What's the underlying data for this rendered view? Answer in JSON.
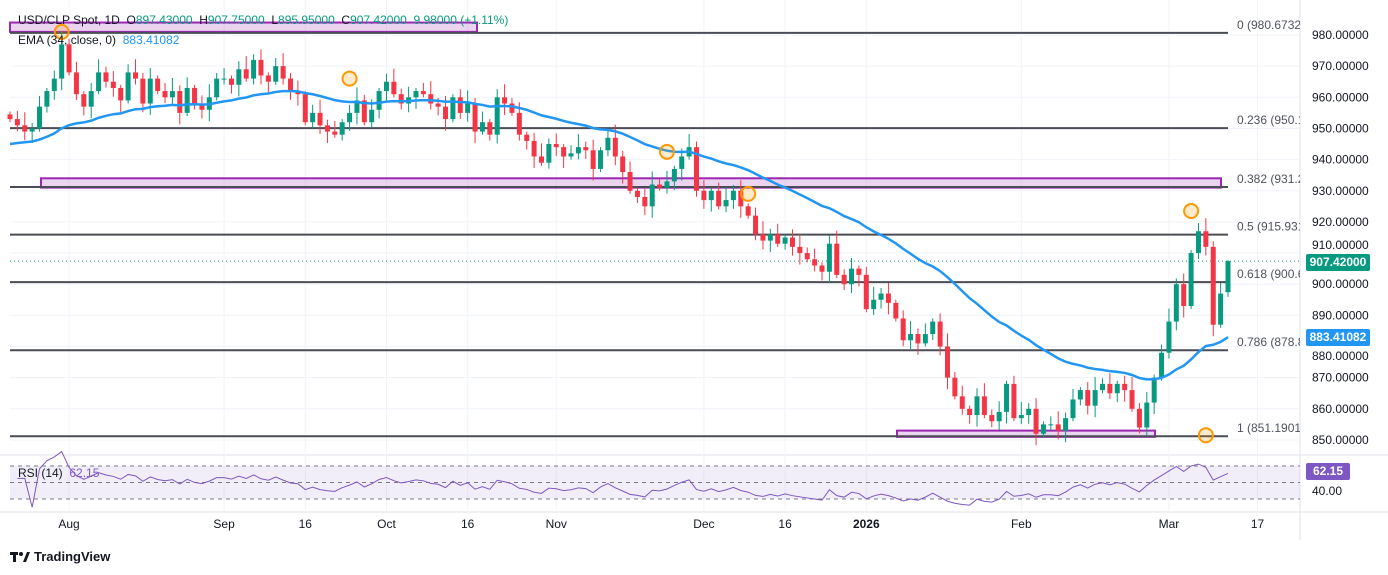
{
  "header": {
    "symbol": "USD/CLP Spot, 1D",
    "open_label": "O",
    "open": "897.43000",
    "high_label": "H",
    "high": "907.75000",
    "low_label": "L",
    "low": "895.95000",
    "close_label": "C",
    "close": "907.42000",
    "change": "9.98000 (+1.11%)",
    "ema_label": "EMA (34, close, 0)",
    "ema_value": "883.41082",
    "rsi_label": "RSI (14)",
    "rsi_value": "62.15"
  },
  "badges": {
    "price": "907.42000",
    "ema": "883.41082",
    "rsi": "62.15"
  },
  "colors": {
    "up": "#089981",
    "down": "#f23645",
    "ema": "#2196f3",
    "rsi": "#7e57c2",
    "fib": "#4a4d56",
    "zone": "#9c27b0",
    "marker": "#ff9800"
  },
  "price_axis": [
    "980.00000",
    "970.00000",
    "960.00000",
    "950.00000",
    "940.00000",
    "930.00000",
    "920.00000",
    "910.00000",
    "900.00000",
    "890.00000",
    "880.00000",
    "870.00000",
    "860.00000",
    "850.00000"
  ],
  "rsi_axis": [
    "40.00"
  ],
  "time_axis": [
    "Aug",
    "Sep",
    "16",
    "Oct",
    "16",
    "Nov",
    "Dec",
    "16",
    "2026",
    "Feb",
    "Mar",
    "17"
  ],
  "fib_levels": [
    {
      "label": "0 (980.67326",
      "value": 980.67326
    },
    {
      "label": "0.236 (950.1",
      "value": 950.11
    },
    {
      "label": "0.382 (931.2",
      "value": 931.2
    },
    {
      "label": "0.5 (915.931",
      "value": 915.931
    },
    {
      "label": "0.618 (900.6",
      "value": 900.65
    },
    {
      "label": "0.786 (878.8",
      "value": 878.8
    },
    {
      "label": "1 (851.19015",
      "value": 851.19015
    }
  ],
  "footer": {
    "brand": "TradingView"
  },
  "chart_data": {
    "type": "candlestick",
    "title": "USD/CLP Spot, 1D",
    "ylim": [
      846,
      984
    ],
    "price_scale": "right",
    "grid": true,
    "month_starts": {
      "Aug": 8,
      "Sep": 29,
      "Oct": 51,
      "Nov": 74,
      "Dec": 94,
      "2026": 116,
      "Feb": 137,
      "Mar": 157
    },
    "closes": [
      953,
      951,
      949,
      950,
      957,
      962,
      966,
      977,
      968,
      961,
      957,
      962,
      968,
      965,
      963,
      959,
      968,
      966,
      958,
      966,
      962,
      960,
      962,
      955,
      963,
      958,
      956,
      960,
      966,
      966,
      964,
      969,
      966,
      972,
      967,
      965,
      970,
      966,
      962,
      961,
      952,
      955,
      951,
      949,
      948,
      952,
      955,
      959,
      952,
      956,
      962,
      965,
      961,
      958,
      960,
      962,
      961,
      958,
      957,
      953,
      960,
      955,
      958,
      949,
      952,
      948,
      960,
      958,
      955,
      948,
      946,
      941,
      939,
      945,
      944,
      941,
      942,
      944,
      943,
      937,
      943,
      947,
      941,
      936,
      930,
      928,
      925,
      932,
      931,
      933,
      937,
      941,
      944,
      930,
      927,
      930,
      925,
      927,
      930,
      925,
      922,
      916,
      914,
      916,
      913,
      915,
      912,
      910,
      908,
      906,
      904,
      913,
      903,
      900,
      905,
      903,
      892,
      895,
      897,
      894,
      889,
      882,
      884,
      881,
      884,
      888,
      880,
      870,
      864,
      860,
      858,
      864,
      858,
      856,
      859,
      868,
      857,
      858,
      860,
      852,
      855,
      855,
      853,
      857,
      863,
      866,
      861,
      866,
      868,
      865,
      868,
      866,
      860,
      854,
      862,
      870,
      878,
      888,
      900,
      893,
      910,
      917,
      912,
      887,
      897,
      907.42
    ],
    "last_candle": {
      "open": 897.43,
      "high": 907.75,
      "low": 895.95,
      "close": 907.42
    },
    "indicators": [
      {
        "name": "EMA (34, close, 0)",
        "last": 883.41082
      },
      {
        "name": "RSI (14)",
        "last": 62.15,
        "bands": [
          70,
          50,
          30
        ]
      }
    ],
    "zones": [
      [
        981,
        984
      ],
      [
        931,
        934
      ],
      [
        851,
        853
      ]
    ]
  }
}
